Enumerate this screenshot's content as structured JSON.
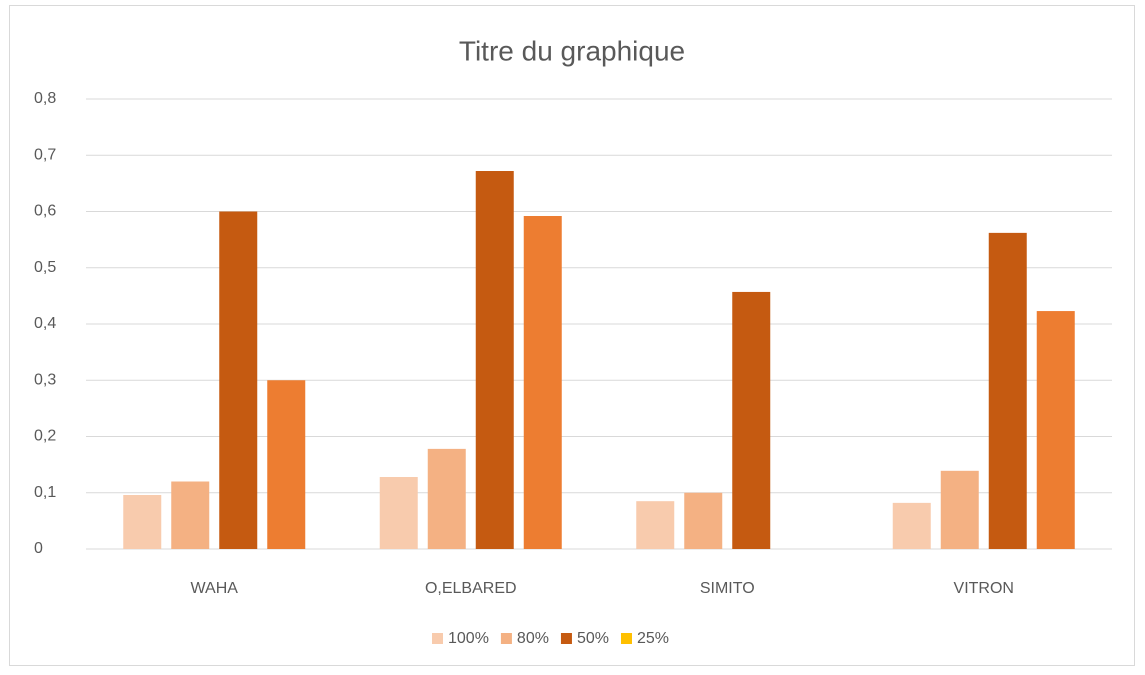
{
  "chart_data": {
    "type": "bar",
    "title": "Titre du graphique",
    "categories": [
      "WAHA",
      "O,ELBARED",
      "SIMITO",
      "VITRON"
    ],
    "series": [
      {
        "name": "100%",
        "color": "#f8cbad",
        "values": [
          0.096,
          0.128,
          0.085,
          0.082
        ]
      },
      {
        "name": "80%",
        "color": "#f4b183",
        "values": [
          0.12,
          0.178,
          0.1,
          0.139
        ]
      },
      {
        "name": "50%",
        "color": "#c55a11",
        "values": [
          0.6,
          0.672,
          0.457,
          0.562
        ]
      },
      {
        "name": "25%",
        "color": "#ed7d31",
        "legend_color": "#ffc000",
        "values": [
          0.3,
          0.592,
          null,
          0.423
        ]
      }
    ],
    "ylim": [
      0,
      0.8
    ],
    "yticks": [
      0,
      {
        "value": 0.1,
        "label": "0,1"
      },
      {
        "value": 0.2,
        "label": "0,2"
      },
      {
        "value": 0.3,
        "label": "0,3"
      },
      {
        "value": 0.4,
        "label": "0,4"
      },
      {
        "value": 0.5,
        "label": "0,5"
      },
      {
        "value": 0.6,
        "label": "0,6"
      },
      {
        "value": 0.7,
        "label": "0,7"
      },
      {
        "value": 0.8,
        "label": "0,8"
      }
    ],
    "grid": true,
    "legend": "bottom"
  }
}
